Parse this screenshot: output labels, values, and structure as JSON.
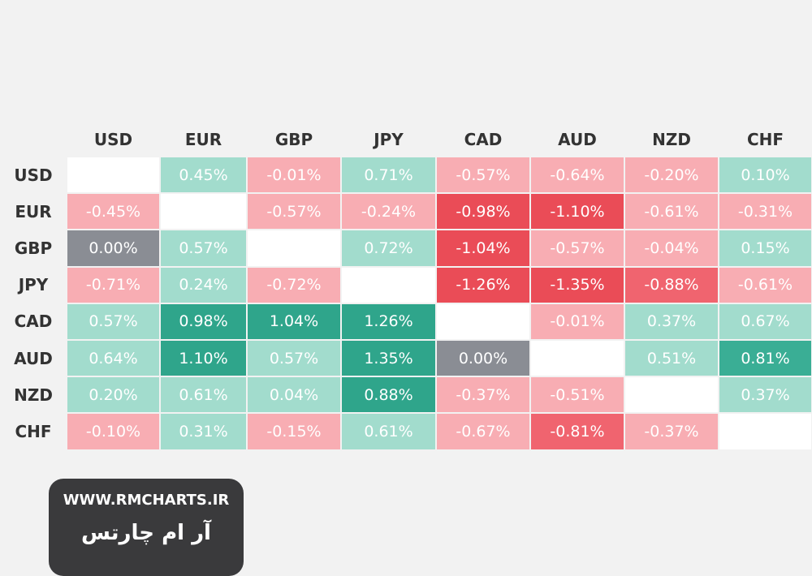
{
  "table": {
    "columns": [
      "USD",
      "EUR",
      "GBP",
      "JPY",
      "CAD",
      "AUD",
      "NZD",
      "CHF"
    ],
    "rows": [
      {
        "label": "USD",
        "cells": [
          null,
          "0.45%",
          "-0.01%",
          "0.71%",
          "-0.57%",
          "-0.64%",
          "-0.20%",
          "0.10%"
        ]
      },
      {
        "label": "EUR",
        "cells": [
          "-0.45%",
          null,
          "-0.57%",
          "-0.24%",
          "-0.98%",
          "-1.10%",
          "-0.61%",
          "-0.31%"
        ]
      },
      {
        "label": "GBP",
        "cells": [
          "0.00%",
          "0.57%",
          null,
          "0.72%",
          "-1.04%",
          "-0.57%",
          "-0.04%",
          "0.15%"
        ]
      },
      {
        "label": "JPY",
        "cells": [
          "-0.71%",
          "0.24%",
          "-0.72%",
          null,
          "-1.26%",
          "-1.35%",
          "-0.88%",
          "-0.61%"
        ]
      },
      {
        "label": "CAD",
        "cells": [
          "0.57%",
          "0.98%",
          "1.04%",
          "1.26%",
          null,
          "-0.01%",
          "0.37%",
          "0.67%"
        ]
      },
      {
        "label": "AUD",
        "cells": [
          "0.64%",
          "1.10%",
          "0.57%",
          "1.35%",
          "0.00%",
          null,
          "0.51%",
          "0.81%"
        ]
      },
      {
        "label": "NZD",
        "cells": [
          "0.20%",
          "0.61%",
          "0.04%",
          "0.88%",
          "-0.37%",
          "-0.51%",
          null,
          "0.37%"
        ]
      },
      {
        "label": "CHF",
        "cells": [
          "-0.10%",
          "0.31%",
          "-0.15%",
          "0.61%",
          "-0.67%",
          "-0.81%",
          "-0.37%",
          null
        ]
      }
    ]
  },
  "watermark": {
    "url": "WWW.RMCHARTS.IR",
    "name": "آر ام چارتس"
  }
}
